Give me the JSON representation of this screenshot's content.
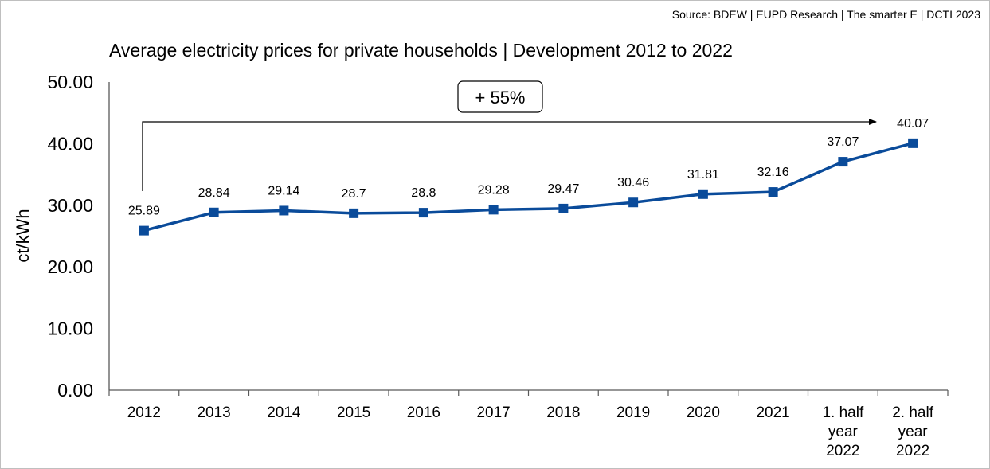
{
  "source": "Source: BDEW | EUPD Research | The smarter E | DCTI 2023",
  "chart_data": {
    "type": "line",
    "title": "Average electricity prices for private households | Development 2012 to 2022",
    "xlabel": "",
    "ylabel": "ct/kWh",
    "ylim": [
      0,
      50
    ],
    "yticks": [
      "0.00",
      "10.00",
      "20.00",
      "30.00",
      "40.00",
      "50.00"
    ],
    "categories": [
      [
        "2012"
      ],
      [
        "2013"
      ],
      [
        "2014"
      ],
      [
        "2015"
      ],
      [
        "2016"
      ],
      [
        "2017"
      ],
      [
        "2018"
      ],
      [
        "2019"
      ],
      [
        "2020"
      ],
      [
        "2021"
      ],
      [
        "1. half",
        "year",
        "2022"
      ],
      [
        "2. half",
        "year",
        "2022"
      ]
    ],
    "series": [
      {
        "values": [
          25.89,
          28.84,
          29.14,
          28.7,
          28.8,
          29.28,
          29.47,
          30.46,
          31.81,
          32.16,
          37.07,
          40.07
        ],
        "labels": [
          "25.89",
          "28.84",
          "29.14",
          "28.7",
          "28.8",
          "29.28",
          "29.47",
          "30.46",
          "31.81",
          "32.16",
          "37.07",
          "40.07"
        ]
      }
    ],
    "annotation": "+ 55%",
    "grid": false,
    "legend": "none",
    "line_color": "#0a4b9a"
  }
}
